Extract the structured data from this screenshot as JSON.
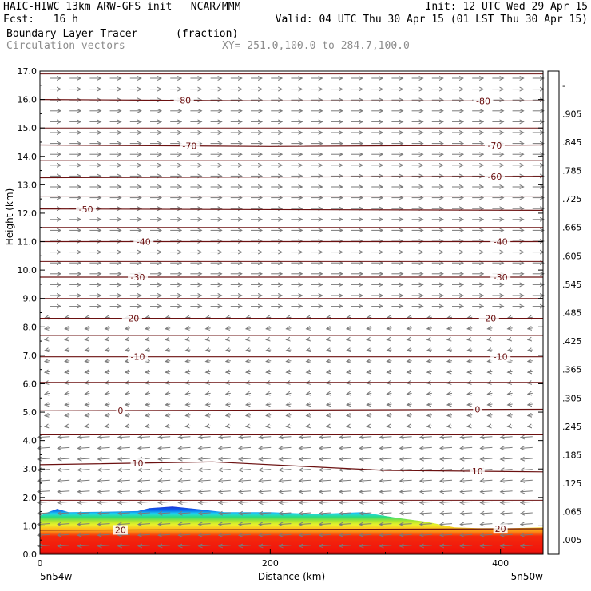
{
  "header": {
    "line1_left": "HAIC-HIWC 13km ARW-GFS init   NCAR/MMM",
    "line1_right": "Init: 12 UTC Wed 29 Apr 15",
    "line2_left": "Fcst:   16 h",
    "line2_right": "Valid: 04 UTC Thu 30 Apr 15 (01 LST Thu 30 Apr 15)",
    "field_name": "Boundary Layer Tracer",
    "field_units": "(fraction)",
    "overlay_name": "Circulation vectors",
    "xy_range": "XY= 251.0,100.0 to 284.7,100.0"
  },
  "chart_data": {
    "type": "heatmap",
    "xlabel": "Distance (km)",
    "ylabel": "Height (km)",
    "xlim": [
      0,
      437
    ],
    "ylim": [
      0,
      17
    ],
    "x_ticks": [
      {
        "value": 0,
        "label": "0"
      },
      {
        "value": 200,
        "label": "200"
      },
      {
        "value": 400,
        "label": "400"
      }
    ],
    "y_ticks": [
      {
        "value": 0,
        "label": "0.0"
      },
      {
        "value": 1,
        "label": "1.0"
      },
      {
        "value": 2,
        "label": "2.0"
      },
      {
        "value": 3,
        "label": "3.0"
      },
      {
        "value": 4,
        "label": "4.0"
      },
      {
        "value": 5,
        "label": "5.0"
      },
      {
        "value": 6,
        "label": "6.0"
      },
      {
        "value": 7,
        "label": "7.0"
      },
      {
        "value": 8,
        "label": "8.0"
      },
      {
        "value": 9,
        "label": "9.0"
      },
      {
        "value": 10,
        "label": "10.0"
      },
      {
        "value": 11,
        "label": "11.0"
      },
      {
        "value": 12,
        "label": "12.0"
      },
      {
        "value": 13,
        "label": "13.0"
      },
      {
        "value": 14,
        "label": "14.0"
      },
      {
        "value": 15,
        "label": "15.0"
      },
      {
        "value": 16,
        "label": "16.0"
      },
      {
        "value": 17,
        "label": "17.0"
      }
    ],
    "endpoint_labels": {
      "left": "5n54w",
      "right": "5n50w"
    },
    "colorbar": {
      "labels": [
        ".005",
        ".065",
        ".125",
        ".185",
        ".245",
        ".305",
        ".365",
        ".425",
        ".485",
        ".545",
        ".605",
        ".665",
        ".725",
        ".785",
        ".845",
        ".905",
        "-"
      ],
      "colors": [
        "#ffffff",
        "#1f2fd6",
        "#0a6af0",
        "#18a8f5",
        "#20d6ee",
        "#25e8c4",
        "#2cdc7c",
        "#64dc3a",
        "#a8e430",
        "#eaf22a",
        "#fbe028",
        "#fcc21e",
        "#fca31a",
        "#fb8014",
        "#f8580f",
        "#f42a0c",
        "#ef100c"
      ]
    },
    "tracer_top_km": [
      {
        "x": 0,
        "y": 1.35
      },
      {
        "x": 5,
        "y": 1.45
      },
      {
        "x": 15,
        "y": 1.6
      },
      {
        "x": 25,
        "y": 1.48
      },
      {
        "x": 60,
        "y": 1.5
      },
      {
        "x": 85,
        "y": 1.52
      },
      {
        "x": 95,
        "y": 1.62
      },
      {
        "x": 115,
        "y": 1.68
      },
      {
        "x": 135,
        "y": 1.6
      },
      {
        "x": 160,
        "y": 1.48
      },
      {
        "x": 200,
        "y": 1.48
      },
      {
        "x": 240,
        "y": 1.42
      },
      {
        "x": 280,
        "y": 1.48
      },
      {
        "x": 310,
        "y": 1.28
      },
      {
        "x": 335,
        "y": 1.15
      },
      {
        "x": 360,
        "y": 0.95
      },
      {
        "x": 380,
        "y": 0.92
      },
      {
        "x": 410,
        "y": 0.92
      },
      {
        "x": 437,
        "y": 0.95
      }
    ],
    "contour_lines": [
      {
        "level": -80,
        "points": [
          [
            0,
            16.0
          ],
          [
            200,
            15.95
          ],
          [
            437,
            15.95
          ]
        ],
        "labels": [
          {
            "text": "-80",
            "x": 125
          },
          {
            "text": "-80",
            "x": 385
          }
        ]
      },
      {
        "level": -70,
        "points": [
          [
            0,
            14.4
          ],
          [
            200,
            14.35
          ],
          [
            437,
            14.4
          ]
        ],
        "labels": [
          {
            "text": "-70",
            "x": 130
          },
          {
            "text": "-70",
            "x": 395
          }
        ]
      },
      {
        "level": -60,
        "points": [
          [
            0,
            13.25
          ],
          [
            437,
            13.3
          ]
        ],
        "labels": [
          {
            "text": "-60",
            "x": 395
          }
        ]
      },
      {
        "level": -50,
        "points": [
          [
            0,
            12.15
          ],
          [
            437,
            12.1
          ]
        ],
        "labels": [
          {
            "text": "-50",
            "x": 40
          }
        ]
      },
      {
        "level": -40,
        "points": [
          [
            0,
            11.0
          ],
          [
            437,
            11.0
          ]
        ],
        "labels": [
          {
            "text": "-40",
            "x": 90
          },
          {
            "text": "-40",
            "x": 400
          }
        ]
      },
      {
        "level": -30,
        "points": [
          [
            0,
            9.75
          ],
          [
            437,
            9.75
          ]
        ],
        "labels": [
          {
            "text": "-30",
            "x": 85
          },
          {
            "text": "-30",
            "x": 400
          }
        ]
      },
      {
        "level": -20,
        "points": [
          [
            0,
            8.3
          ],
          [
            437,
            8.3
          ]
        ],
        "labels": [
          {
            "text": "-20",
            "x": 80
          },
          {
            "text": "-20",
            "x": 390
          }
        ]
      },
      {
        "level": -10,
        "points": [
          [
            0,
            6.95
          ],
          [
            437,
            6.95
          ]
        ],
        "labels": [
          {
            "text": "-10",
            "x": 85
          },
          {
            "text": "-10",
            "x": 400
          }
        ]
      },
      {
        "level": 0,
        "points": [
          [
            0,
            5.05
          ],
          [
            437,
            5.1
          ]
        ],
        "labels": [
          {
            "text": "0",
            "x": 70
          },
          {
            "text": "0",
            "x": 380
          }
        ]
      },
      {
        "level": 10,
        "points": [
          [
            0,
            3.15
          ],
          [
            150,
            3.25
          ],
          [
            300,
            2.95
          ],
          [
            437,
            2.9
          ]
        ],
        "labels": [
          {
            "text": "10",
            "x": 85
          },
          {
            "text": "10",
            "x": 380
          }
        ]
      },
      {
        "level": 20,
        "points": [
          [
            0,
            0.85
          ],
          [
            437,
            0.9
          ]
        ],
        "labels": [
          {
            "text": "20",
            "x": 70
          },
          {
            "text": "20",
            "x": 400
          }
        ]
      }
    ],
    "isotherm_lines_km": [
      0.05,
      1.9,
      4.2,
      6.05,
      7.7,
      9.0,
      10.3,
      11.5,
      12.6,
      13.85,
      15.0,
      16.9
    ]
  }
}
